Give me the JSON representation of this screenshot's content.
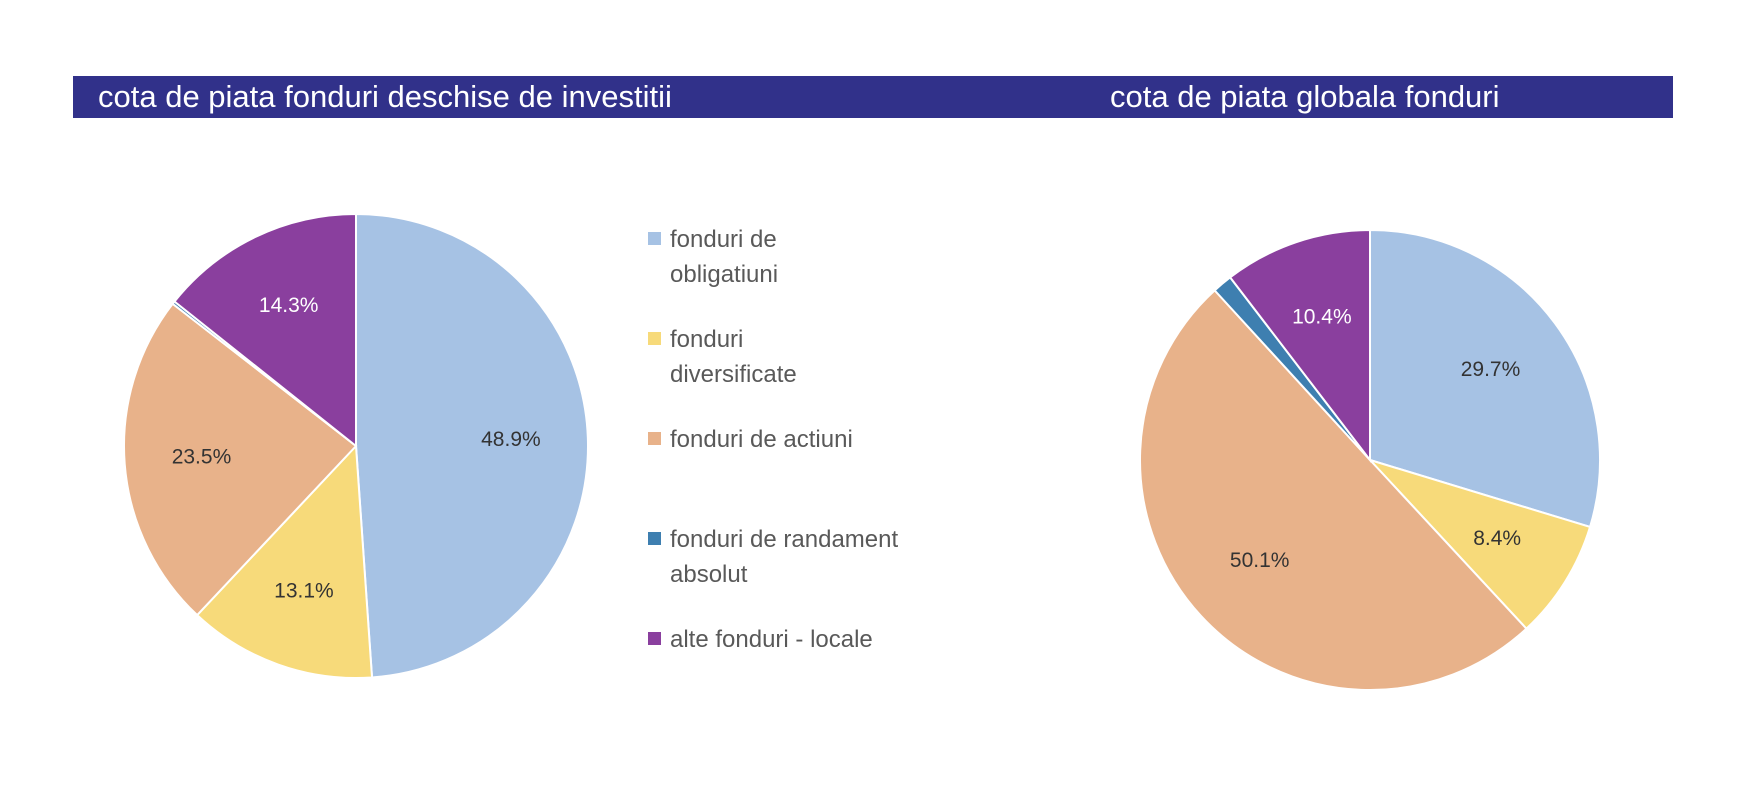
{
  "titles": {
    "left": "cota de piata fonduri deschise de investitii",
    "right": "cota de piata globala fonduri"
  },
  "legend": [
    {
      "label": "fonduri de obligatiuni",
      "color": "#a6c2e4"
    },
    {
      "label": "fonduri diversificate",
      "color": "#f7da7a"
    },
    {
      "label": "fonduri de actiuni",
      "color": "#e8b28a"
    },
    {
      "label": "fonduri de randament absolut",
      "color": "#3e7fb0"
    },
    {
      "label": "alte fonduri - locale",
      "color": "#8a3f9e"
    }
  ],
  "chart_data": [
    {
      "type": "pie",
      "title": "cota de piata fonduri deschise de investitii",
      "categories": [
        "fonduri de obligatiuni",
        "fonduri diversificate",
        "fonduri de actiuni",
        "fonduri de randament absolut",
        "alte fonduri - locale"
      ],
      "values": [
        48.9,
        13.1,
        23.5,
        0.2,
        14.3
      ],
      "labels": [
        "48.9%",
        "13.1%",
        "23.5%",
        "",
        "14.3%"
      ],
      "colors": [
        "#a6c2e4",
        "#f7da7a",
        "#e8b28a",
        "#3e7fb0",
        "#8a3f9e"
      ],
      "label_colors": [
        "#333333",
        "#333333",
        "#333333",
        "#333333",
        "#ffffff"
      ],
      "start_angle_deg": 0,
      "direction": "clockwise"
    },
    {
      "type": "pie",
      "title": "cota de piata globala fonduri",
      "categories": [
        "fonduri de obligatiuni",
        "fonduri diversificate",
        "fonduri de actiuni",
        "fonduri de randament absolut",
        "alte fonduri - locale"
      ],
      "values": [
        29.7,
        8.4,
        50.1,
        1.4,
        10.4
      ],
      "labels": [
        "29.7%",
        "8.4%",
        "50.1%",
        "",
        "10.4%"
      ],
      "colors": [
        "#a6c2e4",
        "#f7da7a",
        "#e8b28a",
        "#3e7fb0",
        "#8a3f9e"
      ],
      "label_colors": [
        "#333333",
        "#333333",
        "#333333",
        "#333333",
        "#ffffff"
      ],
      "start_angle_deg": 0,
      "direction": "clockwise"
    }
  ]
}
